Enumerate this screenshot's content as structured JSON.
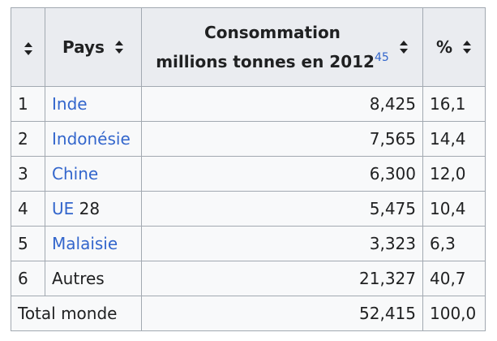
{
  "table": {
    "headers": {
      "pays": "Pays",
      "consommation_line1": "Consommation",
      "consommation_line2": "millions tonnes en 2012",
      "consommation_ref": "45",
      "percent": "%"
    },
    "rows": [
      {
        "rank": "1",
        "country": "Inde",
        "value": "8,425",
        "percent": "16,1"
      },
      {
        "rank": "2",
        "country": "Indonésie",
        "value": "7,565",
        "percent": "14,4"
      },
      {
        "rank": "3",
        "country": "Chine",
        "value": "6,300",
        "percent": "12,0"
      },
      {
        "rank": "4",
        "country": "UE",
        "country_suffix": " 28",
        "value": "5,475",
        "percent": "10,4"
      },
      {
        "rank": "5",
        "country": "Malaisie",
        "value": "3,323",
        "percent": "6,3"
      },
      {
        "rank": "6",
        "country": "Autres",
        "value": "21,327",
        "percent": "40,7"
      }
    ],
    "total": {
      "label": "Total monde",
      "value": "52,415",
      "percent": "100,0"
    }
  },
  "colors": {
    "link": "#3366cc",
    "border": "#a2a9b1",
    "header_bg": "#eaecf0",
    "cell_bg": "#f8f9fa"
  },
  "icons": [
    "sort-icon"
  ]
}
